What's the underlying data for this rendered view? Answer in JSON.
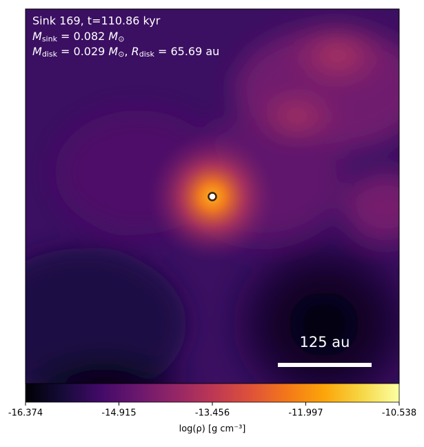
{
  "chart_data": {
    "type": "image",
    "annotation": {
      "line1": "Sink 169, t=110.86 kyr",
      "msink": {
        "symbol": "M",
        "sub": "sink",
        "value": " = 0.082 ",
        "unit": "M",
        "unit_sub": "⊙"
      },
      "mdisk": {
        "symbol": "M",
        "sub": "disk",
        "value": " = 0.029 ",
        "unit": "M",
        "unit_sub": "⊙",
        "sep": ", ",
        "symbol2": "R",
        "sub2": "disk",
        "value2": " = 65.69 au"
      }
    },
    "scale_bar": "125 au",
    "colorbar": {
      "cmap": "inferno",
      "clim": [
        -16.374,
        -10.538
      ],
      "ticks": [
        -16.374,
        -14.915,
        -13.456,
        -11.997,
        -10.538
      ],
      "label": "log(ρ) [g cm⁻³]"
    }
  }
}
